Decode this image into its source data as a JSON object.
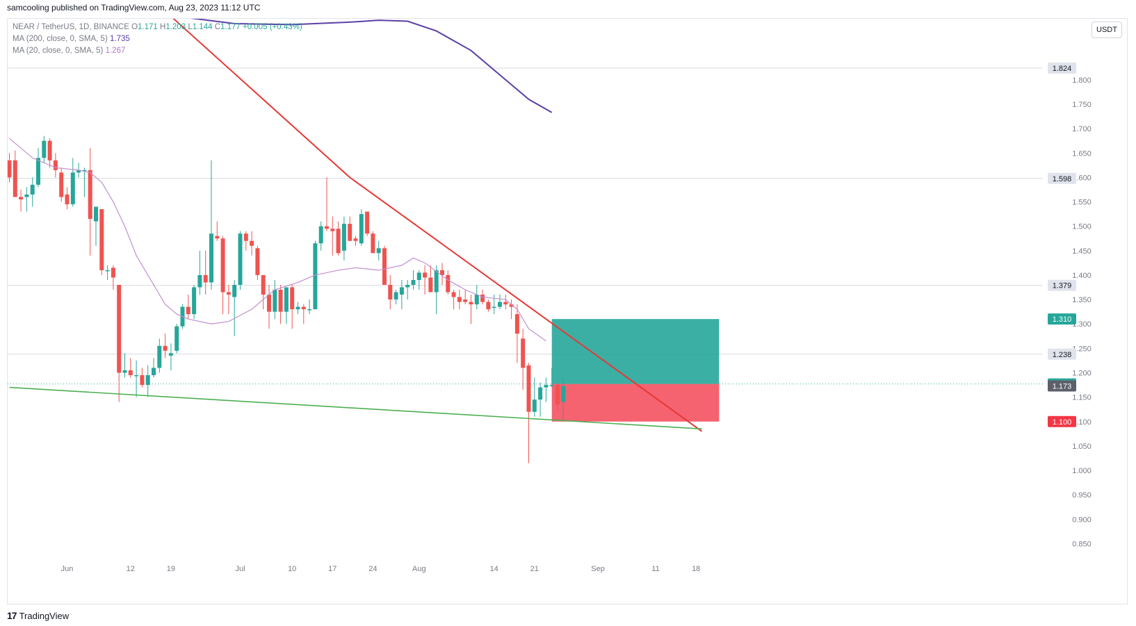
{
  "header": {
    "published_line": "samcooling published on TradingView.com, Aug 23, 2023 11:12 UTC"
  },
  "legend": {
    "symbol": "NEAR / TetherUS, 1D, BINANCE",
    "ohlc": {
      "open_label": "O",
      "open": "1.171",
      "high_label": "H",
      "high": "1.203",
      "low_label": "L",
      "low": "1.144",
      "close_label": "C",
      "close": "1.177",
      "change": "+0.005 (+0.43%)"
    },
    "ma200_label": "MA (200, close, 0, SMA, 5)",
    "ma200_value": "1.735",
    "ma20_label": "MA (20, close, 0, SMA, 5)",
    "ma20_value": "1.267"
  },
  "currency_button": "USDT",
  "footer": {
    "logo": "17",
    "brand": "TradingView"
  },
  "colors": {
    "up": "#26a69a",
    "down": "#ef5350",
    "ma200": "#5b3fa6",
    "ma20": "#c18fd0",
    "trendline_red": "#e53935",
    "trendline_green": "#4caf50",
    "profit_zone": "#26a69a",
    "loss_zone": "#f44c5c",
    "grid": "#d7d9df"
  },
  "chart_data": {
    "type": "candlestick",
    "title": "NEAR / TetherUS, 1D, BINANCE",
    "ylim": [
      0.825,
      1.925
    ],
    "y_ticks": [
      "1.800",
      "1.750",
      "1.700",
      "1.650",
      "1.600",
      "1.550",
      "1.500",
      "1.450",
      "1.400",
      "1.350",
      "1.300",
      "1.250",
      "1.200",
      "1.150",
      "1.100",
      "1.050",
      "1.000",
      "0.950",
      "0.900",
      "0.850"
    ],
    "x_ticks": [
      {
        "label": "Jun",
        "bar": 10
      },
      {
        "label": "12",
        "bar": 21
      },
      {
        "label": "19",
        "bar": 28
      },
      {
        "label": "Jul",
        "bar": 40
      },
      {
        "label": "10",
        "bar": 49
      },
      {
        "label": "17",
        "bar": 56
      },
      {
        "label": "24",
        "bar": 63
      },
      {
        "label": "Aug",
        "bar": 71
      },
      {
        "label": "14",
        "bar": 84
      },
      {
        "label": "21",
        "bar": 91
      },
      {
        "label": "Sep",
        "bar": 102
      },
      {
        "label": "11",
        "bar": 112
      },
      {
        "label": "18",
        "bar": 119
      }
    ],
    "candles": [
      [
        1.635,
        1.65,
        1.59,
        1.6
      ],
      [
        1.635,
        1.655,
        1.56,
        1.56
      ],
      [
        1.56,
        1.575,
        1.53,
        1.555
      ],
      [
        1.56,
        1.58,
        1.53,
        1.565
      ],
      [
        1.565,
        1.6,
        1.54,
        1.585
      ],
      [
        1.585,
        1.66,
        1.58,
        1.64
      ],
      [
        1.64,
        1.685,
        1.63,
        1.675
      ],
      [
        1.675,
        1.68,
        1.62,
        1.635
      ],
      [
        1.635,
        1.65,
        1.6,
        1.615
      ],
      [
        1.61,
        1.62,
        1.55,
        1.56
      ],
      [
        1.565,
        1.58,
        1.535,
        1.545
      ],
      [
        1.545,
        1.64,
        1.54,
        1.61
      ],
      [
        1.61,
        1.63,
        1.6,
        1.615
      ],
      [
        1.615,
        1.62,
        1.56,
        1.615
      ],
      [
        1.615,
        1.66,
        1.44,
        1.515
      ],
      [
        1.51,
        1.54,
        1.46,
        1.54
      ],
      [
        1.535,
        1.535,
        1.4,
        1.41
      ],
      [
        1.41,
        1.42,
        1.39,
        1.41
      ],
      [
        1.415,
        1.42,
        1.37,
        1.395
      ],
      [
        1.38,
        1.38,
        1.14,
        1.2
      ],
      [
        1.2,
        1.24,
        1.19,
        1.205
      ],
      [
        1.205,
        1.23,
        1.19,
        1.195
      ],
      [
        1.195,
        1.225,
        1.15,
        1.195
      ],
      [
        1.195,
        1.21,
        1.17,
        1.175
      ],
      [
        1.175,
        1.215,
        1.15,
        1.195
      ],
      [
        1.195,
        1.23,
        1.19,
        1.21
      ],
      [
        1.21,
        1.27,
        1.2,
        1.255
      ],
      [
        1.255,
        1.28,
        1.23,
        1.245
      ],
      [
        1.235,
        1.26,
        1.205,
        1.24
      ],
      [
        1.245,
        1.3,
        1.24,
        1.295
      ],
      [
        1.295,
        1.34,
        1.29,
        1.335
      ],
      [
        1.335,
        1.36,
        1.31,
        1.32
      ],
      [
        1.32,
        1.38,
        1.31,
        1.375
      ],
      [
        1.375,
        1.45,
        1.36,
        1.4
      ],
      [
        1.4,
        1.45,
        1.36,
        1.385
      ],
      [
        1.385,
        1.635,
        1.37,
        1.485
      ],
      [
        1.48,
        1.51,
        1.47,
        1.475
      ],
      [
        1.475,
        1.48,
        1.32,
        1.365
      ],
      [
        1.365,
        1.38,
        1.32,
        1.36
      ],
      [
        1.355,
        1.39,
        1.275,
        1.38
      ],
      [
        1.38,
        1.49,
        1.37,
        1.485
      ],
      [
        1.485,
        1.49,
        1.45,
        1.47
      ],
      [
        1.47,
        1.49,
        1.44,
        1.46
      ],
      [
        1.455,
        1.46,
        1.39,
        1.4
      ],
      [
        1.4,
        1.4,
        1.33,
        1.36
      ],
      [
        1.36,
        1.38,
        1.29,
        1.325
      ],
      [
        1.325,
        1.39,
        1.31,
        1.37
      ],
      [
        1.37,
        1.38,
        1.3,
        1.325
      ],
      [
        1.325,
        1.37,
        1.3,
        1.375
      ],
      [
        1.375,
        1.38,
        1.29,
        1.33
      ],
      [
        1.33,
        1.345,
        1.32,
        1.335
      ],
      [
        1.335,
        1.34,
        1.3,
        1.33
      ],
      [
        1.33,
        1.35,
        1.32,
        1.33
      ],
      [
        1.33,
        1.47,
        1.33,
        1.465
      ],
      [
        1.465,
        1.51,
        1.45,
        1.5
      ],
      [
        1.5,
        1.6,
        1.49,
        1.495
      ],
      [
        1.495,
        1.52,
        1.44,
        1.49
      ],
      [
        1.495,
        1.51,
        1.44,
        1.445
      ],
      [
        1.45,
        1.52,
        1.43,
        1.505
      ],
      [
        1.505,
        1.52,
        1.47,
        1.47
      ],
      [
        1.475,
        1.48,
        1.46,
        1.47
      ],
      [
        1.465,
        1.535,
        1.46,
        1.525
      ],
      [
        1.53,
        1.53,
        1.48,
        1.485
      ],
      [
        1.485,
        1.49,
        1.45,
        1.445
      ],
      [
        1.445,
        1.47,
        1.43,
        1.455
      ],
      [
        1.455,
        1.46,
        1.38,
        1.38
      ],
      [
        1.38,
        1.4,
        1.33,
        1.35
      ],
      [
        1.35,
        1.37,
        1.34,
        1.365
      ],
      [
        1.36,
        1.39,
        1.33,
        1.375
      ],
      [
        1.375,
        1.39,
        1.35,
        1.38
      ],
      [
        1.38,
        1.41,
        1.37,
        1.39
      ],
      [
        1.39,
        1.41,
        1.37,
        1.405
      ],
      [
        1.405,
        1.42,
        1.36,
        1.395
      ],
      [
        1.395,
        1.42,
        1.37,
        1.365
      ],
      [
        1.365,
        1.42,
        1.32,
        1.41
      ],
      [
        1.41,
        1.425,
        1.38,
        1.4
      ],
      [
        1.4,
        1.41,
        1.36,
        1.365
      ],
      [
        1.365,
        1.37,
        1.33,
        1.355
      ],
      [
        1.355,
        1.37,
        1.33,
        1.345
      ],
      [
        1.35,
        1.37,
        1.34,
        1.345
      ],
      [
        1.345,
        1.36,
        1.3,
        1.34
      ],
      [
        1.34,
        1.38,
        1.33,
        1.36
      ],
      [
        1.36,
        1.37,
        1.34,
        1.345
      ],
      [
        1.345,
        1.35,
        1.325,
        1.33
      ],
      [
        1.335,
        1.36,
        1.32,
        1.335
      ],
      [
        1.335,
        1.36,
        1.33,
        1.345
      ],
      [
        1.345,
        1.36,
        1.33,
        1.34
      ],
      [
        1.34,
        1.35,
        1.31,
        1.335
      ],
      [
        1.32,
        1.34,
        1.22,
        1.28
      ],
      [
        1.27,
        1.29,
        1.165,
        1.21
      ],
      [
        1.215,
        1.22,
        1.015,
        1.12
      ],
      [
        1.12,
        1.19,
        1.11,
        1.145
      ],
      [
        1.145,
        1.18,
        1.11,
        1.17
      ],
      [
        1.17,
        1.19,
        1.14,
        1.175
      ],
      [
        1.175,
        1.21,
        1.17,
        1.175
      ],
      [
        1.175,
        1.18,
        1.12,
        1.135
      ],
      [
        1.14,
        1.19,
        1.1,
        1.173
      ]
    ],
    "ma200": [
      [
        29,
        1.93
      ],
      [
        39,
        1.915
      ],
      [
        49,
        1.913
      ],
      [
        59,
        1.918
      ],
      [
        64,
        1.922
      ],
      [
        69,
        1.92
      ],
      [
        74,
        1.9
      ],
      [
        80,
        1.86
      ],
      [
        86,
        1.8
      ],
      [
        90,
        1.76
      ],
      [
        94,
        1.733
      ]
    ],
    "ma20": [
      [
        0,
        1.68
      ],
      [
        4,
        1.64
      ],
      [
        8,
        1.62
      ],
      [
        12,
        1.615
      ],
      [
        14,
        1.61
      ],
      [
        16,
        1.59
      ],
      [
        18,
        1.55
      ],
      [
        20,
        1.5
      ],
      [
        22,
        1.44
      ],
      [
        25,
        1.38
      ],
      [
        27,
        1.34
      ],
      [
        29,
        1.32
      ],
      [
        31,
        1.31
      ],
      [
        35,
        1.3
      ],
      [
        38,
        1.305
      ],
      [
        42,
        1.33
      ],
      [
        46,
        1.37
      ],
      [
        50,
        1.385
      ],
      [
        53,
        1.4
      ],
      [
        57,
        1.41
      ],
      [
        60,
        1.415
      ],
      [
        64,
        1.41
      ],
      [
        66,
        1.415
      ],
      [
        68,
        1.42
      ],
      [
        70,
        1.435
      ],
      [
        72,
        1.425
      ],
      [
        76,
        1.39
      ],
      [
        79,
        1.37
      ],
      [
        82,
        1.355
      ],
      [
        86,
        1.35
      ],
      [
        88,
        1.33
      ],
      [
        90,
        1.29
      ],
      [
        93,
        1.265
      ]
    ],
    "trendline_red": [
      [
        28,
        1.93
      ],
      [
        59,
        1.6
      ],
      [
        93,
        1.31
      ],
      [
        120,
        1.08
      ]
    ],
    "trendline_green": [
      [
        0,
        1.17
      ],
      [
        120,
        1.085
      ]
    ],
    "position": {
      "start_bar": 94,
      "end_bar": 123,
      "target": 1.31,
      "entry": 1.177,
      "stop": 1.1
    },
    "horizontal_levels": [
      1.824,
      1.598,
      1.379,
      1.238
    ],
    "price_labels": [
      {
        "value": 1.824,
        "text": "1.824",
        "kind": "gray"
      },
      {
        "value": 1.598,
        "text": "1.598",
        "kind": "gray"
      },
      {
        "value": 1.379,
        "text": "1.379",
        "kind": "gray"
      },
      {
        "value": 1.31,
        "text": "1.310",
        "kind": "green"
      },
      {
        "value": 1.238,
        "text": "1.238",
        "kind": "gray"
      },
      {
        "value": 1.177,
        "text": "1.177",
        "kind": "green"
      },
      {
        "value": 1.173,
        "text": "1.173",
        "kind": "dark"
      },
      {
        "value": 1.1,
        "text": "1.100",
        "kind": "red"
      }
    ]
  }
}
